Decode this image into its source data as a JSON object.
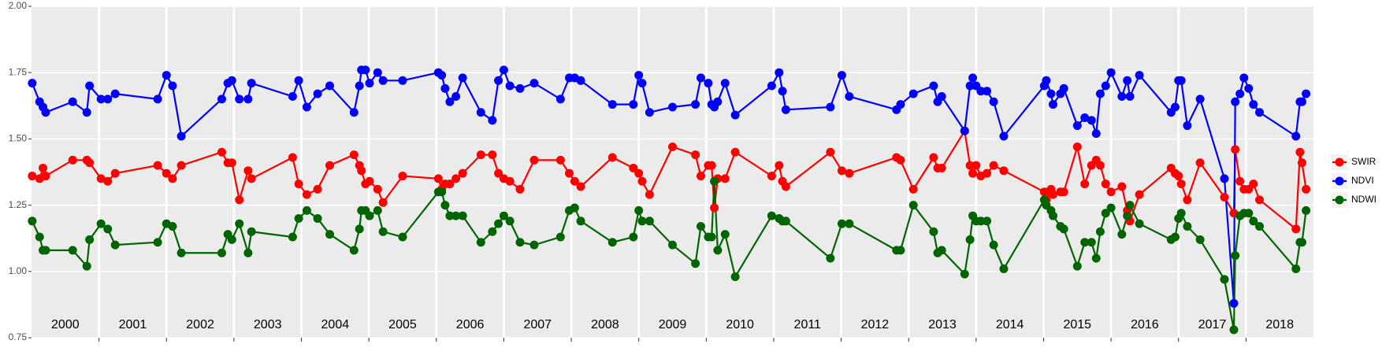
{
  "chart_data": {
    "type": "line",
    "x": [
      2000.01,
      2000.12,
      2000.17,
      2000.21,
      2000.61,
      2000.82,
      2000.86,
      2001.03,
      2001.13,
      2001.24,
      2001.87,
      2002.0,
      2002.09,
      2002.22,
      2002.82,
      2002.91,
      2002.97,
      2003.08,
      2003.21,
      2003.26,
      2003.87,
      2003.96,
      2004.08,
      2004.24,
      2004.42,
      2004.78,
      2004.86,
      2004.89,
      2004.95,
      2005.01,
      2005.13,
      2005.21,
      2005.5,
      2006.03,
      2006.08,
      2006.13,
      2006.2,
      2006.29,
      2006.39,
      2006.66,
      2006.83,
      2006.92,
      2007.0,
      2007.09,
      2007.24,
      2007.45,
      2007.84,
      2007.97,
      2008.05,
      2008.14,
      2008.61,
      2008.92,
      2009.0,
      2009.05,
      2009.16,
      2009.5,
      2009.84,
      2009.92,
      2010.03,
      2010.08,
      2010.12,
      2010.17,
      2010.28,
      2010.43,
      2010.97,
      2011.08,
      2011.13,
      2011.18,
      2011.84,
      2012.01,
      2012.12,
      2012.82,
      2012.88,
      2013.07,
      2013.37,
      2013.43,
      2013.49,
      2013.83,
      2013.91,
      2013.95,
      2014.0,
      2014.07,
      2014.16,
      2014.26,
      2014.41,
      2015.01,
      2015.04,
      2015.11,
      2015.14,
      2015.25,
      2015.3,
      2015.5,
      2015.61,
      2015.71,
      2015.78,
      2015.84,
      2015.92,
      2016.0,
      2016.16,
      2016.24,
      2016.28,
      2016.42,
      2016.89,
      2016.95,
      2017.0,
      2017.04,
      2017.13,
      2017.32,
      2017.68,
      2017.82,
      2017.84,
      2017.91,
      2017.97,
      2018.04,
      2018.11,
      2018.2,
      2018.74,
      2018.8,
      2018.83,
      2018.89
    ],
    "series": [
      {
        "name": "SWIR",
        "color": "#ff0000",
        "values": [
          1.36,
          1.35,
          1.39,
          1.36,
          1.42,
          1.42,
          1.41,
          1.35,
          1.34,
          1.37,
          1.4,
          1.37,
          1.35,
          1.4,
          1.45,
          1.41,
          1.41,
          1.27,
          1.38,
          1.35,
          1.43,
          1.33,
          1.29,
          1.31,
          1.4,
          1.44,
          1.4,
          1.38,
          1.33,
          1.34,
          1.31,
          1.26,
          1.36,
          1.35,
          1.31,
          1.33,
          1.33,
          1.35,
          1.37,
          1.44,
          1.44,
          1.37,
          1.35,
          1.34,
          1.31,
          1.42,
          1.42,
          1.37,
          1.34,
          1.32,
          1.43,
          1.39,
          1.37,
          1.34,
          1.29,
          1.47,
          1.44,
          1.36,
          1.4,
          1.4,
          1.24,
          1.35,
          1.35,
          1.45,
          1.36,
          1.4,
          1.34,
          1.32,
          1.45,
          1.38,
          1.37,
          1.43,
          1.42,
          1.31,
          1.43,
          1.39,
          1.39,
          1.53,
          1.4,
          1.37,
          1.4,
          1.36,
          1.37,
          1.4,
          1.38,
          1.3,
          1.27,
          1.31,
          1.29,
          1.3,
          1.3,
          1.47,
          1.33,
          1.4,
          1.42,
          1.4,
          1.33,
          1.3,
          1.32,
          1.23,
          1.19,
          1.29,
          1.39,
          1.37,
          1.36,
          1.33,
          1.27,
          1.41,
          1.28,
          1.22,
          1.46,
          1.34,
          1.31,
          1.31,
          1.33,
          1.27,
          1.16,
          1.45,
          1.41,
          1.31
        ]
      },
      {
        "name": "NDVI",
        "color": "#0000ff",
        "values": [
          1.71,
          1.64,
          1.62,
          1.6,
          1.64,
          1.6,
          1.7,
          1.65,
          1.65,
          1.67,
          1.65,
          1.74,
          1.7,
          1.51,
          1.65,
          1.71,
          1.72,
          1.65,
          1.65,
          1.71,
          1.66,
          1.72,
          1.62,
          1.67,
          1.7,
          1.6,
          1.7,
          1.76,
          1.76,
          1.71,
          1.75,
          1.72,
          1.72,
          1.75,
          1.74,
          1.69,
          1.64,
          1.66,
          1.73,
          1.6,
          1.57,
          1.72,
          1.76,
          1.7,
          1.69,
          1.71,
          1.65,
          1.73,
          1.73,
          1.72,
          1.63,
          1.63,
          1.74,
          1.71,
          1.6,
          1.62,
          1.63,
          1.73,
          1.71,
          1.63,
          1.62,
          1.64,
          1.71,
          1.59,
          1.7,
          1.75,
          1.68,
          1.61,
          1.62,
          1.74,
          1.66,
          1.61,
          1.63,
          1.67,
          1.7,
          1.64,
          1.66,
          1.53,
          1.7,
          1.73,
          1.7,
          1.68,
          1.68,
          1.64,
          1.51,
          1.7,
          1.72,
          1.67,
          1.63,
          1.67,
          1.69,
          1.55,
          1.58,
          1.57,
          1.52,
          1.67,
          1.7,
          1.75,
          1.66,
          1.72,
          1.66,
          1.74,
          1.6,
          1.62,
          1.72,
          1.72,
          1.55,
          1.65,
          1.35,
          0.88,
          1.64,
          1.67,
          1.73,
          1.69,
          1.63,
          1.6,
          1.51,
          1.64,
          1.64,
          1.67
        ]
      },
      {
        "name": "NDWI",
        "color": "#006400",
        "values": [
          1.19,
          1.13,
          1.08,
          1.08,
          1.08,
          1.02,
          1.12,
          1.18,
          1.16,
          1.1,
          1.11,
          1.18,
          1.17,
          1.07,
          1.07,
          1.14,
          1.12,
          1.18,
          1.07,
          1.15,
          1.13,
          1.2,
          1.23,
          1.2,
          1.14,
          1.08,
          1.16,
          1.23,
          1.23,
          1.21,
          1.23,
          1.15,
          1.13,
          1.3,
          1.3,
          1.25,
          1.21,
          1.21,
          1.21,
          1.11,
          1.15,
          1.18,
          1.21,
          1.19,
          1.11,
          1.1,
          1.13,
          1.23,
          1.24,
          1.19,
          1.11,
          1.13,
          1.23,
          1.19,
          1.19,
          1.1,
          1.03,
          1.17,
          1.13,
          1.13,
          1.34,
          1.08,
          1.14,
          0.98,
          1.21,
          1.2,
          1.19,
          1.19,
          1.05,
          1.18,
          1.18,
          1.08,
          1.08,
          1.25,
          1.15,
          1.07,
          1.08,
          0.99,
          1.12,
          1.21,
          1.19,
          1.19,
          1.19,
          1.1,
          1.01,
          1.27,
          1.25,
          1.23,
          1.21,
          1.17,
          1.16,
          1.02,
          1.11,
          1.11,
          1.05,
          1.15,
          1.22,
          1.24,
          1.14,
          1.21,
          1.25,
          1.18,
          1.12,
          1.13,
          1.2,
          1.22,
          1.17,
          1.12,
          0.97,
          0.78,
          1.06,
          1.21,
          1.22,
          1.22,
          1.19,
          1.17,
          1.01,
          1.11,
          1.11,
          1.23
        ]
      }
    ],
    "xlim": [
      2000,
      2019
    ],
    "xticks": [
      {
        "value": 2000.5,
        "label": "2000"
      },
      {
        "value": 2001.5,
        "label": "2001"
      },
      {
        "value": 2002.5,
        "label": "2002"
      },
      {
        "value": 2003.5,
        "label": "2003"
      },
      {
        "value": 2004.5,
        "label": "2004"
      },
      {
        "value": 2005.5,
        "label": "2005"
      },
      {
        "value": 2006.5,
        "label": "2006"
      },
      {
        "value": 2007.5,
        "label": "2007"
      },
      {
        "value": 2008.5,
        "label": "2008"
      },
      {
        "value": 2009.5,
        "label": "2009"
      },
      {
        "value": 2010.5,
        "label": "2010"
      },
      {
        "value": 2011.5,
        "label": "2011"
      },
      {
        "value": 2012.5,
        "label": "2012"
      },
      {
        "value": 2013.5,
        "label": "2013"
      },
      {
        "value": 2014.5,
        "label": "2014"
      },
      {
        "value": 2015.5,
        "label": "2015"
      },
      {
        "value": 2016.5,
        "label": "2016"
      },
      {
        "value": 2017.5,
        "label": "2017"
      },
      {
        "value": 2018.5,
        "label": "2018"
      }
    ],
    "year_breaks": [
      2001,
      2002,
      2003,
      2004,
      2005,
      2006,
      2007,
      2008,
      2009,
      2010,
      2011,
      2012,
      2013,
      2014,
      2015,
      2016,
      2017,
      2018
    ],
    "ylim": [
      0.75,
      2.0
    ],
    "yticks": [
      {
        "value": 0.75,
        "label": "0.75"
      },
      {
        "value": 1.0,
        "label": "1.00"
      },
      {
        "value": 1.25,
        "label": "1.25"
      },
      {
        "value": 1.5,
        "label": "1.50"
      },
      {
        "value": 1.75,
        "label": "1.75"
      },
      {
        "value": 2.0,
        "label": "2.00"
      }
    ],
    "grid": true,
    "legend": "right"
  }
}
